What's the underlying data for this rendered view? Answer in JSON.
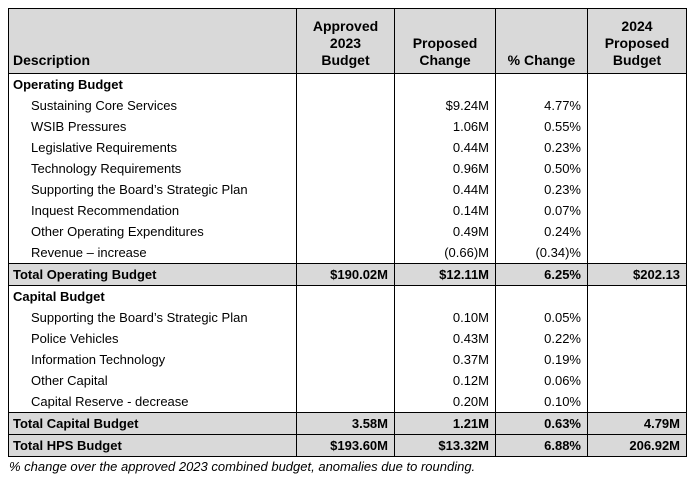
{
  "table": {
    "header": [
      [
        "Description"
      ],
      [
        "Approved",
        "2023",
        "Budget"
      ],
      [
        "Proposed",
        "Change"
      ],
      [
        "% Change"
      ],
      [
        "2024",
        "Proposed",
        "Budget"
      ]
    ],
    "sections": [
      {
        "title": "Operating Budget",
        "items": [
          [
            "Sustaining Core Services",
            null,
            "$9.24M",
            "4.77%",
            null
          ],
          [
            "WSIB Pressures",
            null,
            "1.06M",
            "0.55%",
            null
          ],
          [
            "Legislative Requirements",
            null,
            "0.44M",
            "0.23%",
            null
          ],
          [
            "Technology Requirements",
            null,
            "0.96M",
            "0.50%",
            null
          ],
          [
            "Supporting the Board’s Strategic Plan",
            null,
            "0.44M",
            "0.23%",
            null
          ],
          [
            "Inquest Recommendation",
            null,
            "0.14M",
            "0.07%",
            null
          ],
          [
            "Other Operating Expenditures",
            null,
            "0.49M",
            "0.24%",
            null
          ],
          [
            "Revenue – increase",
            null,
            "(0.66)M",
            "(0.34)%",
            null
          ]
        ],
        "total": [
          "Total Operating Budget",
          "$190.02M",
          "$12.11M",
          "6.25%",
          "$202.13"
        ]
      },
      {
        "title": "Capital Budget",
        "items": [
          [
            "Supporting the Board’s Strategic Plan",
            null,
            "0.10M",
            "0.05%",
            null
          ],
          [
            "Police Vehicles",
            null,
            "0.43M",
            "0.22%",
            null
          ],
          [
            "Information Technology",
            null,
            "0.37M",
            "0.19%",
            null
          ],
          [
            "Other Capital",
            null,
            "0.12M",
            "0.06%",
            null
          ],
          [
            "Capital Reserve - decrease",
            null,
            "0.20M",
            "0.10%",
            null
          ]
        ],
        "total": [
          "Total Capital Budget",
          "3.58M",
          "1.21M",
          "0.63%",
          "4.79M"
        ]
      }
    ],
    "grand_total": [
      "Total HPS Budget",
      "$193.60M",
      "$13.32M",
      "6.88%",
      "206.92M"
    ],
    "footnote": "% change over the approved 2023 combined budget, anomalies due to rounding."
  }
}
